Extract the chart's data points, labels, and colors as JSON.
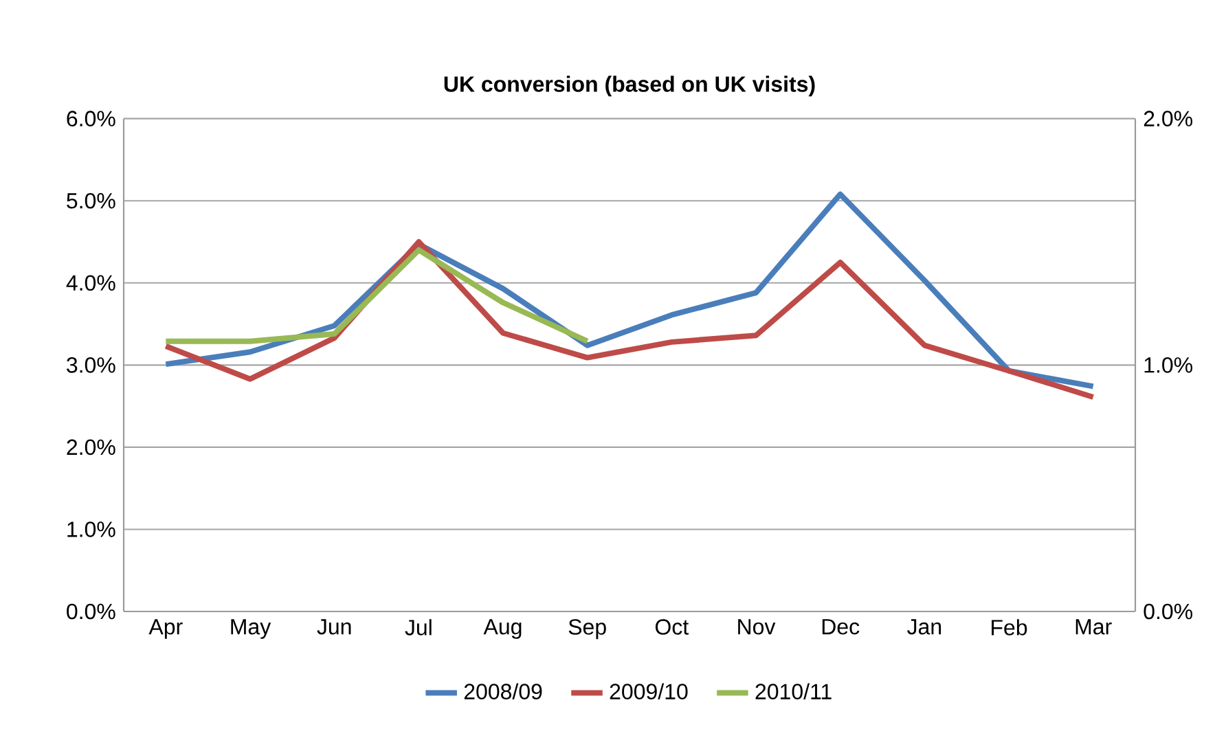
{
  "chart_data": {
    "type": "line",
    "title": "UK conversion (based on UK visits)",
    "categories": [
      "Apr",
      "May",
      "Jun",
      "Jul",
      "Aug",
      "Sep",
      "Oct",
      "Nov",
      "Dec",
      "Jan",
      "Feb",
      "Mar"
    ],
    "series": [
      {
        "name": "2008/09",
        "color": "#4a7ebb",
        "values": [
          3.01,
          3.16,
          3.48,
          4.47,
          3.93,
          3.24,
          3.61,
          3.88,
          5.08,
          4.03,
          2.93,
          2.74
        ]
      },
      {
        "name": "2009/10",
        "color": "#be4b48",
        "values": [
          3.23,
          2.83,
          3.33,
          4.5,
          3.39,
          3.09,
          3.28,
          3.36,
          4.25,
          3.24,
          2.93,
          2.61
        ]
      },
      {
        "name": "2010/11",
        "color": "#98b954",
        "values": [
          3.29,
          3.29,
          3.38,
          4.4,
          3.76,
          3.29,
          null,
          null,
          null,
          null,
          null,
          null
        ]
      }
    ],
    "ylim": [
      0,
      6
    ],
    "yticks": [
      {
        "value": 0,
        "label": "0.0%"
      },
      {
        "value": 1,
        "label": "1.0%"
      },
      {
        "value": 2,
        "label": "2.0%"
      },
      {
        "value": 3,
        "label": "3.0%"
      },
      {
        "value": 4,
        "label": "4.0%"
      },
      {
        "value": 5,
        "label": "5.0%"
      },
      {
        "value": 6,
        "label": "6.0%"
      }
    ],
    "y2lim": [
      0,
      2
    ],
    "y2ticks": [
      {
        "value": 0,
        "label": "0.0%"
      },
      {
        "value": 1,
        "label": "1.0%"
      },
      {
        "value": 2,
        "label": "2.0%"
      }
    ],
    "grid": "y",
    "legend": "bottom",
    "marker": "none",
    "line_style": "solid"
  }
}
